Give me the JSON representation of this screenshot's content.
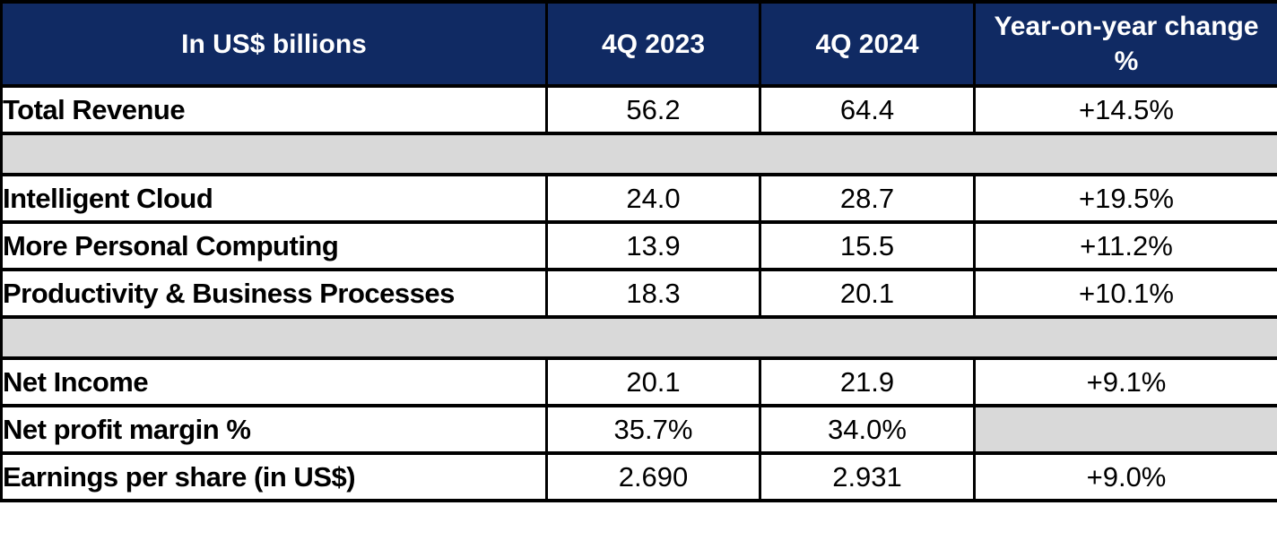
{
  "colors": {
    "header_bg": "#102A63",
    "header_text": "#FFFFFF",
    "spacer_bg": "#D9D9D9",
    "border_color": "#000000",
    "body_text": "#000000"
  },
  "table": {
    "header": {
      "unit_label": "In US$ billions",
      "col_q4_2023": "4Q 2023",
      "col_q4_2024": "4Q 2024",
      "col_yoy": "Year-on-year change %"
    },
    "rows": [
      {
        "label": "Total Revenue",
        "q4_2023": "56.2",
        "q4_2024": "64.4",
        "yoy": "+14.5%"
      },
      {
        "label": "Intelligent Cloud",
        "q4_2023": "24.0",
        "q4_2024": "28.7",
        "yoy": "+19.5%"
      },
      {
        "label": "More Personal Computing",
        "q4_2023": "13.9",
        "q4_2024": "15.5",
        "yoy": "+11.2%"
      },
      {
        "label": "Productivity & Business Processes",
        "q4_2023": "18.3",
        "q4_2024": "20.1",
        "yoy": "+10.1%"
      },
      {
        "label": "Net Income",
        "q4_2023": "20.1",
        "q4_2024": "21.9",
        "yoy": "+9.1%"
      },
      {
        "label": "Net profit margin %",
        "q4_2023": "35.7%",
        "q4_2024": "34.0%",
        "yoy": ""
      },
      {
        "label": "Earnings per share (in US$)",
        "q4_2023": "2.690",
        "q4_2024": "2.931",
        "yoy": "+9.0%"
      }
    ]
  },
  "chart_data": {
    "type": "table",
    "title": "In US$ billions",
    "columns": [
      "In US$ billions",
      "4Q 2023",
      "4Q 2024",
      "Year-on-year change %"
    ],
    "rows": [
      [
        "Total Revenue",
        "56.2",
        "64.4",
        "+14.5%"
      ],
      [
        "Intelligent Cloud",
        "24.0",
        "28.7",
        "+19.5%"
      ],
      [
        "More Personal Computing",
        "13.9",
        "15.5",
        "+11.2%"
      ],
      [
        "Productivity & Business Processes",
        "18.3",
        "20.1",
        "+10.1%"
      ],
      [
        "Net Income",
        "20.1",
        "21.9",
        "+9.1%"
      ],
      [
        "Net profit margin %",
        "35.7%",
        "34.0%",
        ""
      ],
      [
        "Earnings per share (in US$)",
        "2.690",
        "2.931",
        "+9.0%"
      ]
    ],
    "notes": "Quarterly financial results table; gray spacer bands separate sections; Net profit margin year-on-year cell is blank gray"
  }
}
